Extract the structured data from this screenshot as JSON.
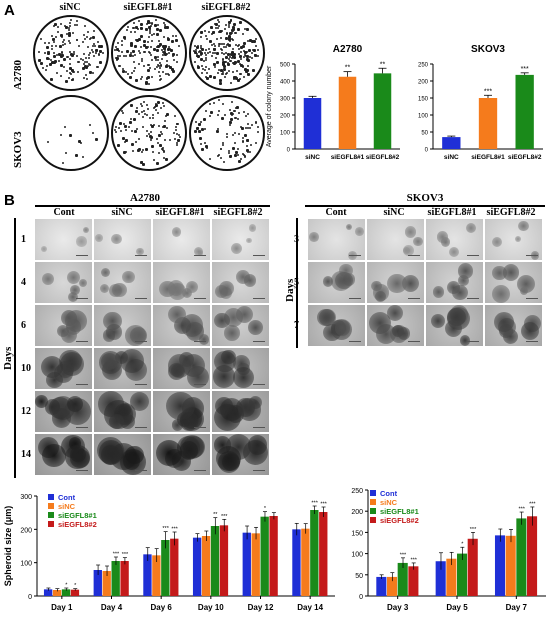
{
  "panels": {
    "a": "A",
    "b": "B"
  },
  "colony": {
    "col_labels": [
      "siNC",
      "siEGFL8#1",
      "siEGFL8#2"
    ],
    "row_labels": [
      "A2780",
      "SKOV3"
    ],
    "dish_density": [
      [
        0.6,
        0.7,
        0.9
      ],
      [
        0.05,
        0.45,
        0.4
      ]
    ]
  },
  "spheroid_a2780": {
    "title": "A2780",
    "col_labels": [
      "Cont",
      "siNC",
      "siEGFL8#1",
      "siEGFL8#2"
    ],
    "row_labels": [
      "1",
      "4",
      "6",
      "10",
      "12",
      "14"
    ],
    "axis_label": "Days"
  },
  "spheroid_skov3": {
    "title": "SKOV3",
    "col_labels": [
      "Cont",
      "siNC",
      "siEGFL8#1",
      "siEGFL8#2"
    ],
    "row_labels": [
      "3",
      "5",
      "7"
    ],
    "axis_label": "Days"
  },
  "chart_data": [
    {
      "type": "bar",
      "title": "A2780",
      "ylabel": "Average of colony number",
      "categories": [
        "siNC",
        "siEGFL8#1",
        "siEGFL8#2"
      ],
      "values": [
        300,
        425,
        445
      ],
      "errors": [
        10,
        30,
        30
      ],
      "colors": [
        "#1f2fd6",
        "#f57b1c",
        "#1a8a1a"
      ],
      "sig": [
        "",
        "**",
        "**"
      ],
      "ylim": [
        0,
        500
      ],
      "yticks": [
        0,
        100,
        200,
        300,
        400,
        500
      ]
    },
    {
      "type": "bar",
      "title": "SKOV3",
      "ylabel": "",
      "categories": [
        "siNC",
        "siEGFL8#1",
        "siEGFL8#2"
      ],
      "values": [
        35,
        150,
        218
      ],
      "errors": [
        3,
        8,
        6
      ],
      "colors": [
        "#1f2fd6",
        "#f57b1c",
        "#1a8a1a"
      ],
      "sig": [
        "",
        "***",
        "***"
      ],
      "ylim": [
        0,
        250
      ],
      "yticks": [
        0,
        50,
        100,
        150,
        200,
        250
      ]
    },
    {
      "type": "bar",
      "title": "",
      "ylabel": "Spheroid size (μm)",
      "categories": [
        "Day 1",
        "Day 4",
        "Day 6",
        "Day 10",
        "Day 12",
        "Day 14"
      ],
      "series": [
        {
          "name": "Cont",
          "color": "#1f2fd6",
          "values": [
            20,
            78,
            125,
            175,
            190,
            200
          ],
          "errors": [
            4,
            15,
            20,
            12,
            20,
            18
          ],
          "sig": [
            "",
            "",
            "",
            "",
            "",
            ""
          ]
        },
        {
          "name": "siNC",
          "color": "#f57b1c",
          "values": [
            18,
            75,
            122,
            180,
            188,
            202
          ],
          "errors": [
            4,
            15,
            20,
            15,
            18,
            15
          ],
          "sig": [
            "",
            "",
            "",
            "",
            "",
            ""
          ]
        },
        {
          "name": "siEGFL8#1",
          "color": "#1a8a1a",
          "values": [
            20,
            105,
            168,
            210,
            238,
            258
          ],
          "errors": [
            4,
            12,
            25,
            25,
            15,
            12
          ],
          "sig": [
            "*",
            "***",
            "***",
            "**",
            "*",
            "***"
          ]
        },
        {
          "name": "siEGFL8#2",
          "color": "#c41a1a",
          "values": [
            19,
            105,
            172,
            212,
            240,
            252
          ],
          "errors": [
            3,
            10,
            20,
            18,
            10,
            15
          ],
          "sig": [
            "*",
            "***",
            "***",
            "***",
            "",
            "***"
          ]
        }
      ],
      "ylim": [
        0,
        300
      ],
      "yticks": [
        0,
        100,
        200,
        300
      ],
      "legend": "top-left"
    },
    {
      "type": "bar",
      "title": "",
      "ylabel": "",
      "categories": [
        "Day 3",
        "Day 5",
        "Day 7"
      ],
      "series": [
        {
          "name": "Cont",
          "color": "#1f2fd6",
          "values": [
            45,
            82,
            143
          ],
          "errors": [
            5,
            20,
            15
          ],
          "sig": [
            "",
            "",
            ""
          ]
        },
        {
          "name": "siNC",
          "color": "#f57b1c",
          "values": [
            45,
            88,
            142
          ],
          "errors": [
            10,
            15,
            15
          ],
          "sig": [
            "",
            "",
            ""
          ]
        },
        {
          "name": "siEGFL8#1",
          "color": "#1a8a1a",
          "values": [
            78,
            100,
            183
          ],
          "errors": [
            12,
            15,
            15
          ],
          "sig": [
            "***",
            "*",
            "***"
          ]
        },
        {
          "name": "siEGFL8#2",
          "color": "#c41a1a",
          "values": [
            70,
            135,
            188
          ],
          "errors": [
            8,
            15,
            22
          ],
          "sig": [
            "***",
            "***",
            "***"
          ]
        }
      ],
      "ylim": [
        0,
        250
      ],
      "yticks": [
        0,
        50,
        100,
        150,
        200,
        250
      ],
      "legend": "top-left"
    }
  ]
}
